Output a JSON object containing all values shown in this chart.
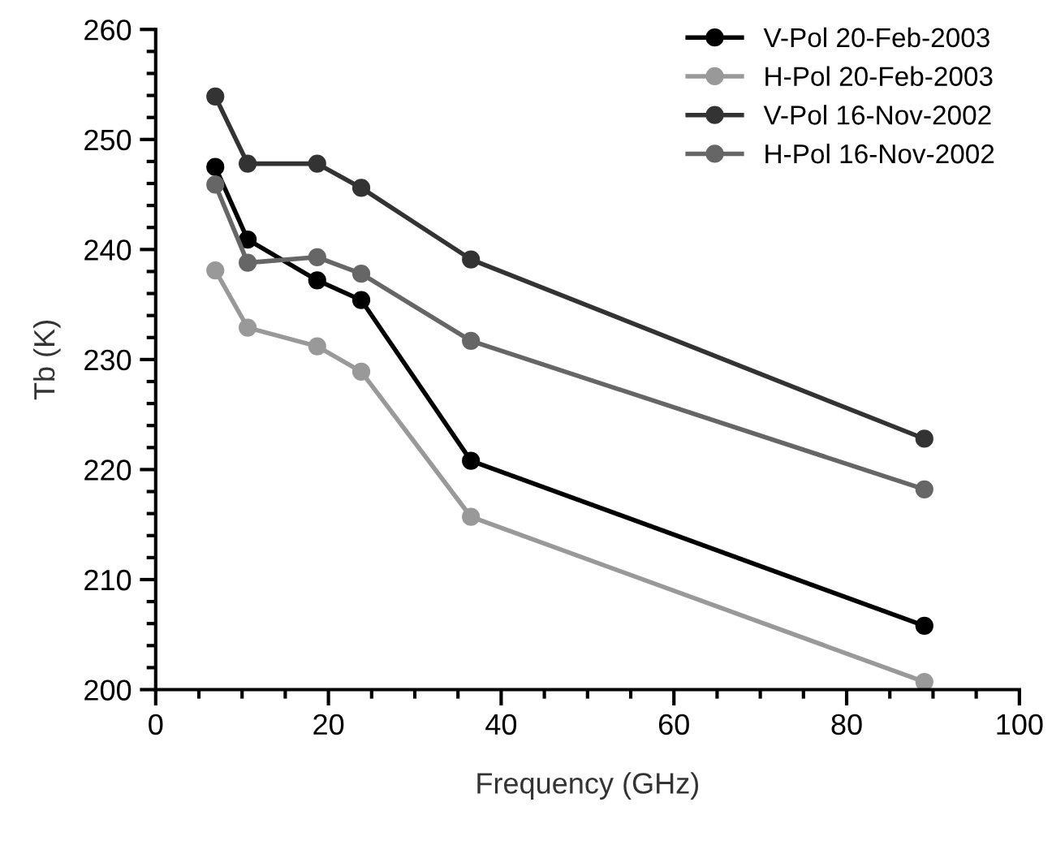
{
  "chart_data": {
    "type": "line",
    "xlabel": "Frequency (GHz)",
    "ylabel": "Tb (K)",
    "x": [
      6.9,
      10.65,
      18.7,
      23.8,
      36.5,
      89.0
    ],
    "series": [
      {
        "name": "V-Pol 20-Feb-2003",
        "color": "#000000",
        "values": [
          247.5,
          240.9,
          237.2,
          235.4,
          220.8,
          205.8
        ]
      },
      {
        "name": "H-Pol 20-Feb-2003",
        "color": "#999999",
        "values": [
          238.1,
          232.9,
          231.2,
          228.9,
          215.7,
          200.7
        ]
      },
      {
        "name": "V-Pol 16-Nov-2002",
        "color": "#333333",
        "values": [
          253.9,
          247.8,
          247.8,
          245.6,
          239.1,
          222.8
        ]
      },
      {
        "name": "H-Pol 16-Nov-2002",
        "color": "#666666",
        "values": [
          245.9,
          238.8,
          239.3,
          237.8,
          231.7,
          218.2
        ]
      }
    ],
    "xlim": [
      0,
      100
    ],
    "xticks": [
      0,
      20,
      40,
      60,
      80,
      100
    ],
    "ylim": [
      200,
      260
    ],
    "yticks": [
      200,
      210,
      220,
      230,
      240,
      250,
      260
    ],
    "grid": false,
    "legend": "top right",
    "marker": "circle",
    "line_style": "solid"
  }
}
